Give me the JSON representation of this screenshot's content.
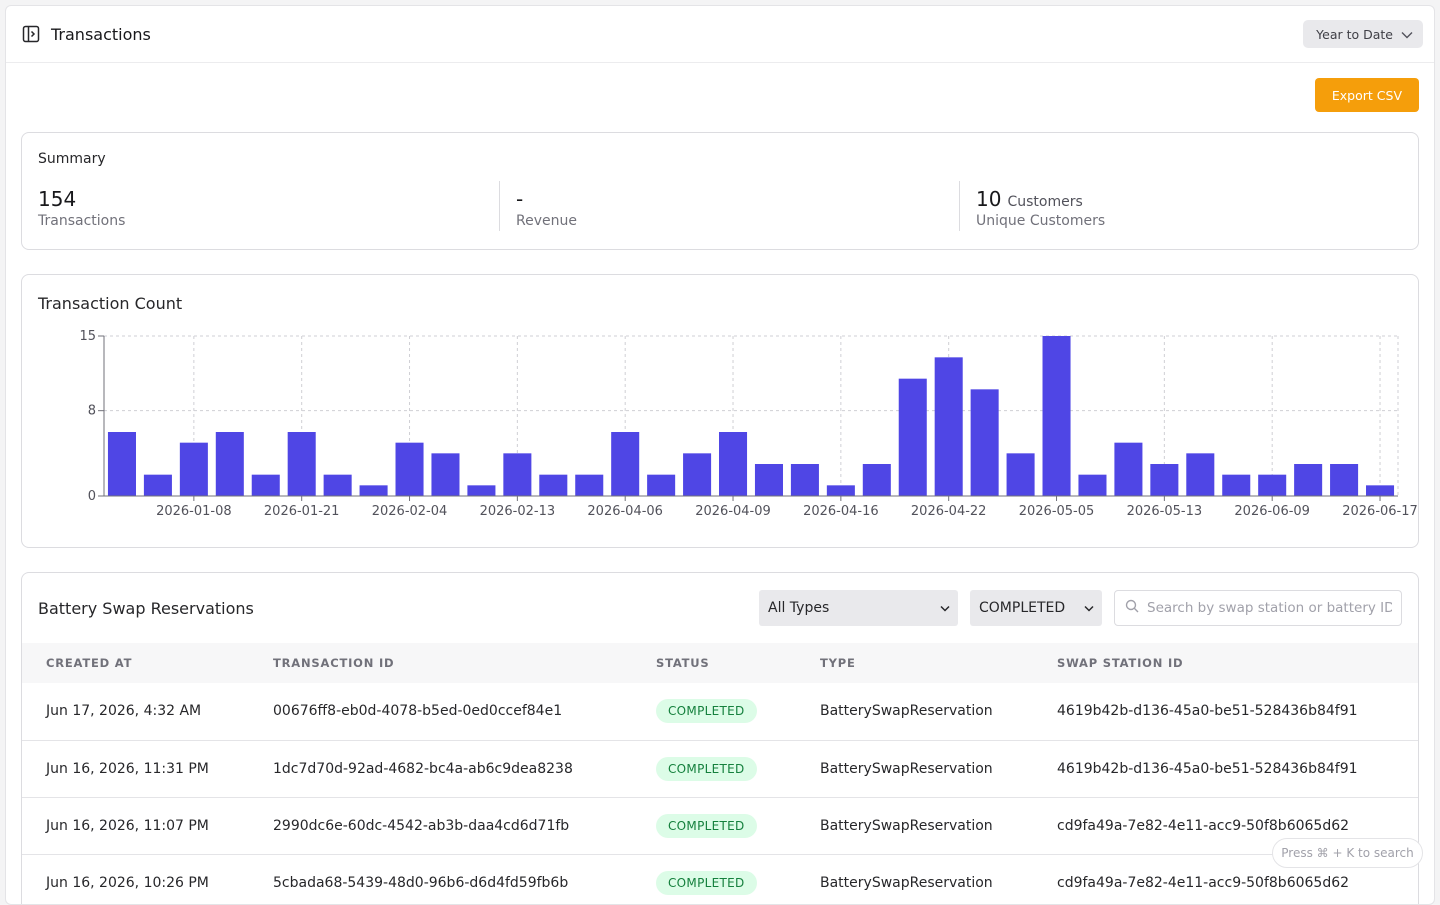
{
  "header": {
    "title": "Transactions",
    "range_label": "Year to Date",
    "toggle_icon": "sidebar-toggle-icon"
  },
  "toolbar": {
    "export_label": "Export CSV"
  },
  "summary": {
    "title": "Summary",
    "transactions_value": "154",
    "transactions_label": "Transactions",
    "revenue_value": "-",
    "revenue_label": "Revenue",
    "customers_value": "10",
    "customers_unit": "Customers",
    "customers_label": "Unique Customers"
  },
  "chart_data": {
    "type": "bar",
    "title": "Transaction Count",
    "xlabel": "",
    "ylabel": "",
    "ylim": [
      0,
      15
    ],
    "yticks": [
      0,
      8,
      15
    ],
    "grid": true,
    "color": "#4f46e5",
    "values": [
      6,
      2,
      5,
      6,
      2,
      6,
      2,
      1,
      5,
      4,
      1,
      4,
      2,
      2,
      6,
      2,
      4,
      6,
      3,
      3,
      1,
      3,
      11,
      13,
      10,
      4,
      15,
      2,
      5,
      3,
      4,
      2,
      2,
      3,
      3,
      1
    ],
    "tick_labels": [
      "2026-01-08",
      "2026-01-21",
      "2026-02-04",
      "2026-02-13",
      "2026-04-06",
      "2026-04-09",
      "2026-04-16",
      "2026-04-22",
      "2026-05-05",
      "2026-05-13",
      "2026-06-09",
      "2026-06-17"
    ]
  },
  "table": {
    "title": "Battery Swap Reservations",
    "type_filter": "All Types",
    "status_filter": "COMPLETED",
    "search_placeholder": "Search by swap station or battery IDs",
    "columns": [
      "CREATED AT",
      "TRANSACTION ID",
      "STATUS",
      "TYPE",
      "SWAP STATION ID"
    ],
    "rows": [
      [
        "Jun 17, 2026, 4:32 AM",
        "00676ff8-eb0d-4078-b5ed-0ed0ccef84e1",
        "COMPLETED",
        "BatterySwapReservation",
        "4619b42b-d136-45a0-be51-528436b84f91"
      ],
      [
        "Jun 16, 2026, 11:31 PM",
        "1dc7d70d-92ad-4682-bc4a-ab6c9dea8238",
        "COMPLETED",
        "BatterySwapReservation",
        "4619b42b-d136-45a0-be51-528436b84f91"
      ],
      [
        "Jun 16, 2026, 11:07 PM",
        "2990dc6e-60dc-4542-ab3b-daa4cd6d71fb",
        "COMPLETED",
        "BatterySwapReservation",
        "cd9fa49a-7e82-4e11-acc9-50f8b6065d62"
      ],
      [
        "Jun 16, 2026, 10:26 PM",
        "5cbada68-5439-48d0-96b6-d6d4fd59fb6b",
        "COMPLETED",
        "BatterySwapReservation",
        "cd9fa49a-7e82-4e11-acc9-50f8b6065d62"
      ]
    ]
  },
  "hint": "Press ⌘ + K to search"
}
